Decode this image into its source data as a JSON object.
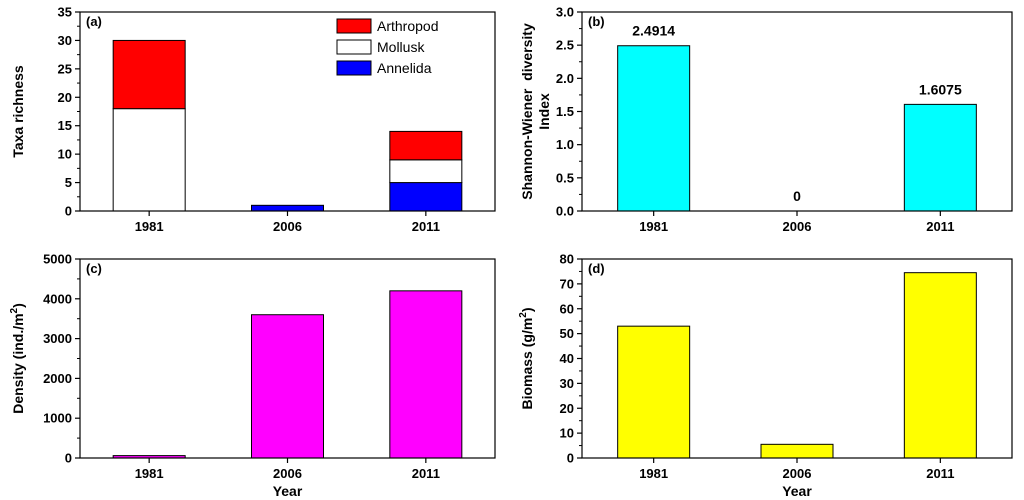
{
  "chart_data": [
    {
      "type": "bar",
      "stacked": true,
      "panel_label": "(a)",
      "ylabel": "Taxa richness",
      "xlabel": "",
      "categories": [
        "1981",
        "2006",
        "2011"
      ],
      "ylim": [
        0,
        35
      ],
      "yticks": [
        0,
        5,
        10,
        15,
        20,
        25,
        30,
        35
      ],
      "series": [
        {
          "name": "Annelida",
          "color": "#0000ff",
          "values": [
            0,
            1,
            5
          ]
        },
        {
          "name": "Mollusk",
          "color": "#ffffff",
          "values": [
            18,
            0,
            4
          ]
        },
        {
          "name": "Arthropod",
          "color": "#ff0000",
          "values": [
            12,
            0,
            5
          ]
        }
      ],
      "legend_order": [
        "Arthropod",
        "Mollusk",
        "Annelida"
      ],
      "legend_position": "top-right"
    },
    {
      "type": "bar",
      "panel_label": "(b)",
      "ylabel_lines": [
        "Shannon-Wiener  diversity",
        "Index"
      ],
      "xlabel": "",
      "categories": [
        "1981",
        "2006",
        "2011"
      ],
      "values": [
        2.4914,
        0,
        1.6075
      ],
      "data_labels": [
        "2.4914",
        "0",
        "1.6075"
      ],
      "color": "#00ffff",
      "ylim": [
        0,
        3.0
      ],
      "yticks": [
        0.0,
        0.5,
        1.0,
        1.5,
        2.0,
        2.5,
        3.0
      ],
      "ytick_labels": [
        "0.0",
        "0.5",
        "1.0",
        "1.5",
        "2.0",
        "2.5",
        "3.0"
      ]
    },
    {
      "type": "bar",
      "panel_label": "(c)",
      "ylabel": "Density (ind./m",
      "ylabel_sup": "2",
      "ylabel_end": ")",
      "xlabel": "Year",
      "categories": [
        "1981",
        "2006",
        "2011"
      ],
      "values": [
        60,
        3600,
        4200
      ],
      "color": "#ff00ff",
      "ylim": [
        0,
        5000
      ],
      "yticks": [
        0,
        1000,
        2000,
        3000,
        4000,
        5000
      ]
    },
    {
      "type": "bar",
      "panel_label": "(d)",
      "ylabel": "Biomass (g/m",
      "ylabel_sup": "2",
      "ylabel_end": ")",
      "xlabel": "Year",
      "categories": [
        "1981",
        "2006",
        "2011"
      ],
      "values": [
        53,
        5.5,
        74.5
      ],
      "color": "#ffff00",
      "ylim": [
        0,
        80
      ],
      "yticks": [
        0,
        10,
        20,
        30,
        40,
        50,
        60,
        70,
        80
      ]
    }
  ]
}
